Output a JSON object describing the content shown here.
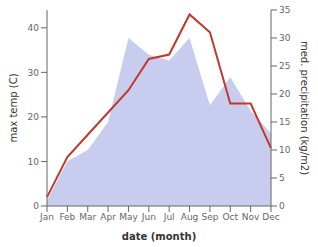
{
  "chart_data": {
    "type": "line",
    "categories": [
      "Jan",
      "Feb",
      "Mar",
      "Apr",
      "May",
      "Jun",
      "Jul",
      "Aug",
      "Sep",
      "Oct",
      "Nov",
      "Dec"
    ],
    "series": [
      {
        "type": "area",
        "color": "#b0b8e8",
        "axis": "y2",
        "values": [
          1,
          8,
          10,
          15,
          30,
          27,
          26,
          30,
          18,
          23,
          17,
          13
        ]
      },
      {
        "type": "line",
        "color": "#c0392b",
        "values": [
          2,
          11,
          16,
          21,
          26,
          33,
          34,
          43,
          39,
          23,
          23,
          13
        ]
      }
    ],
    "ylim": [
      0,
      44
    ],
    "yticks": [
      0,
      10,
      20,
      30,
      40
    ],
    "y2lim": [
      0,
      35
    ],
    "y2ticks": [
      0,
      5,
      10,
      15,
      20,
      25,
      30,
      35
    ],
    "ylabel": "max temp (C)",
    "y2label": "med. precipitation (kg/m2)",
    "xlabel": "date (month)"
  }
}
